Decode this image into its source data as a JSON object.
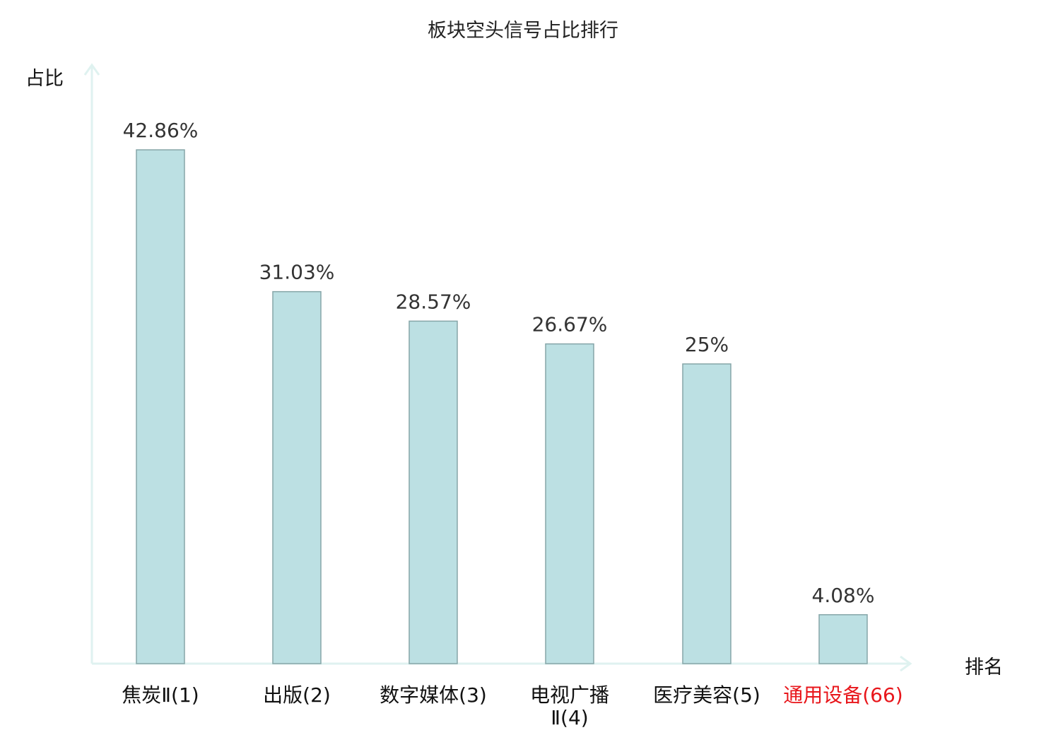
{
  "chart_data": {
    "type": "bar",
    "title": "板块空头信号占比排行",
    "xlabel": "排名",
    "ylabel": "占比",
    "categories": [
      {
        "name": "焦炭Ⅱ",
        "rank": "(1)",
        "lines": [
          "焦炭Ⅱ(1)"
        ],
        "highlight": false
      },
      {
        "name": "出版",
        "rank": "(2)",
        "lines": [
          "出版(2)"
        ],
        "highlight": false
      },
      {
        "name": "数字媒体",
        "rank": "(3)",
        "lines": [
          "数字媒体(3)"
        ],
        "highlight": false
      },
      {
        "name": "电视广播Ⅱ",
        "rank": "(4)",
        "lines": [
          "电视广播",
          "Ⅱ(4)"
        ],
        "highlight": false
      },
      {
        "name": "医疗美容",
        "rank": "(5)",
        "lines": [
          "医疗美容(5)"
        ],
        "highlight": false
      },
      {
        "name": "通用设备",
        "rank": "(66)",
        "lines": [
          "通用设备(66)"
        ],
        "highlight": true
      }
    ],
    "values": [
      42.86,
      31.03,
      28.57,
      26.67,
      25,
      4.08
    ],
    "labels": [
      "42.86%",
      "31.03%",
      "28.57%",
      "26.67%",
      "25%",
      "4.08%"
    ],
    "ylim": [
      0,
      50
    ],
    "grid": false,
    "colors": {
      "bar": "#bce0e3",
      "bar_edge": "#86a6a8",
      "axis": "#dff2f0",
      "highlight": "#e8161b"
    }
  }
}
